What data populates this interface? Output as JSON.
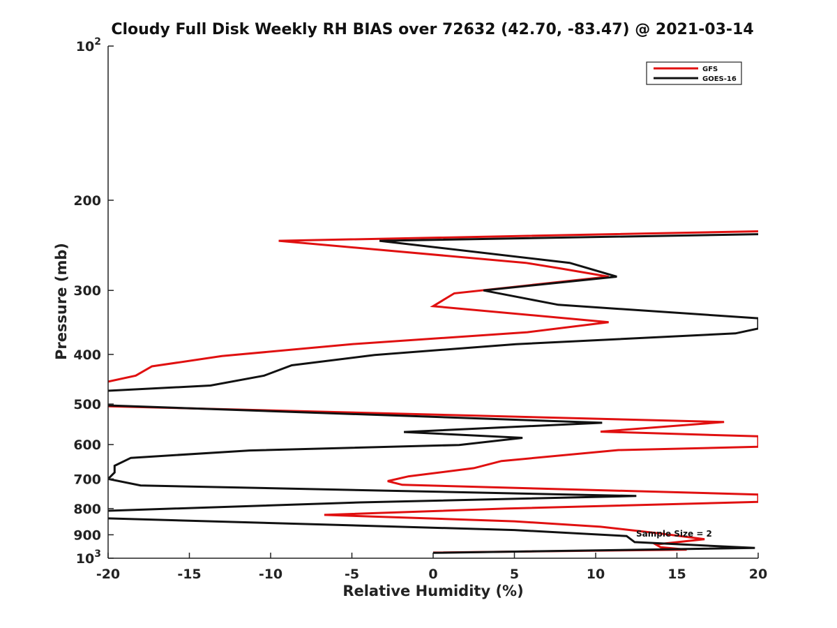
{
  "chart_data": {
    "type": "line",
    "title": "Cloudy Full Disk Weekly RH BIAS over 72632 (42.70, -83.47) @ 2021-03-14",
    "xlabel": "Relative Humidity (%)",
    "ylabel": "Pressure (mb)",
    "xlim": [
      -20,
      20
    ],
    "ylim": [
      100,
      1000
    ],
    "y_scale": "log",
    "y_reversed": true,
    "grid": false,
    "legend_position": "top-right",
    "x_ticks": [
      "-20",
      "-15",
      "-10",
      "-5",
      "0",
      "5",
      "10",
      "15",
      "20"
    ],
    "y_tick_labels": [
      {
        "value": 100,
        "base": "10",
        "exp": "2"
      },
      {
        "value": 200,
        "label": "200"
      },
      {
        "value": 300,
        "label": "300"
      },
      {
        "value": 400,
        "label": "400"
      },
      {
        "value": 500,
        "label": "500"
      },
      {
        "value": 600,
        "label": "600"
      },
      {
        "value": 700,
        "label": "700"
      },
      {
        "value": 800,
        "label": "800"
      },
      {
        "value": 900,
        "label": "900"
      },
      {
        "value": 1000,
        "base": "10",
        "exp": "3"
      }
    ],
    "series": [
      {
        "name": "GFS",
        "color": "#e01010",
        "points": [
          {
            "x": 20,
            "p": 230
          },
          {
            "x": -9.5,
            "p": 240
          },
          {
            "x": 5.7,
            "p": 265
          },
          {
            "x": 7.9,
            "p": 272
          },
          {
            "x": 10.8,
            "p": 282
          },
          {
            "x": 1.3,
            "p": 304
          },
          {
            "x": 0,
            "p": 322
          },
          {
            "x": 10.8,
            "p": 346
          },
          {
            "x": 5.8,
            "p": 362
          },
          {
            "x": -5,
            "p": 382
          },
          {
            "x": -13,
            "p": 403
          },
          {
            "x": -17.3,
            "p": 422
          },
          {
            "x": -18.3,
            "p": 440
          },
          {
            "x": -20,
            "p": 452
          },
          {
            "x": null,
            "p": null
          },
          {
            "x": -20,
            "p": 505
          },
          {
            "x": 17.9,
            "p": 542
          },
          {
            "x": 10.3,
            "p": 566
          },
          {
            "x": 20,
            "p": 578
          },
          {
            "x": 20,
            "p": 606
          },
          {
            "x": 11.4,
            "p": 615
          },
          {
            "x": 4.2,
            "p": 646
          },
          {
            "x": 2.5,
            "p": 667
          },
          {
            "x": -1.5,
            "p": 692
          },
          {
            "x": -2.8,
            "p": 707
          },
          {
            "x": -1.9,
            "p": 719
          },
          {
            "x": 20,
            "p": 751
          },
          {
            "x": 20,
            "p": 776
          },
          {
            "x": 4.4,
            "p": 800
          },
          {
            "x": -6.7,
            "p": 823
          },
          {
            "x": 5,
            "p": 847
          },
          {
            "x": 10.3,
            "p": 868
          },
          {
            "x": 14,
            "p": 895
          },
          {
            "x": 16.7,
            "p": 918
          },
          {
            "x": 13.7,
            "p": 940
          },
          {
            "x": 14,
            "p": 952
          },
          {
            "x": 15.6,
            "p": 962
          },
          {
            "x": 0,
            "p": 975
          }
        ]
      },
      {
        "name": "GOES-16",
        "color": "#111111",
        "points": [
          {
            "x": 20,
            "p": 233
          },
          {
            "x": -3.3,
            "p": 240
          },
          {
            "x": 8.4,
            "p": 265
          },
          {
            "x": 11.3,
            "p": 282
          },
          {
            "x": 3.1,
            "p": 300
          },
          {
            "x": 7.7,
            "p": 320
          },
          {
            "x": 20,
            "p": 340
          },
          {
            "x": 20,
            "p": 356
          },
          {
            "x": 18.6,
            "p": 364
          },
          {
            "x": 5.1,
            "p": 382
          },
          {
            "x": -3.6,
            "p": 401
          },
          {
            "x": -8.7,
            "p": 420
          },
          {
            "x": -10.4,
            "p": 440
          },
          {
            "x": -13.7,
            "p": 460
          },
          {
            "x": -20,
            "p": 471
          },
          {
            "x": null,
            "p": null
          },
          {
            "x": -20,
            "p": 503
          },
          {
            "x": 10.4,
            "p": 544
          },
          {
            "x": -1.8,
            "p": 567
          },
          {
            "x": 5.5,
            "p": 582
          },
          {
            "x": 1.6,
            "p": 601
          },
          {
            "x": -11.3,
            "p": 616
          },
          {
            "x": -18.6,
            "p": 637
          },
          {
            "x": -19.6,
            "p": 660
          },
          {
            "x": -19.6,
            "p": 680
          },
          {
            "x": -20,
            "p": 700
          },
          {
            "x": -18,
            "p": 721
          },
          {
            "x": 12.5,
            "p": 756
          },
          {
            "x": -4.5,
            "p": 778
          },
          {
            "x": -20,
            "p": 808
          },
          {
            "x": null,
            "p": null
          },
          {
            "x": -20,
            "p": 836
          },
          {
            "x": 5,
            "p": 881
          },
          {
            "x": 11.9,
            "p": 905
          },
          {
            "x": 12.4,
            "p": 930
          },
          {
            "x": 19.8,
            "p": 955
          },
          {
            "x": 0,
            "p": 976
          }
        ]
      }
    ],
    "annotations": [
      "Sample Size = 2"
    ]
  }
}
